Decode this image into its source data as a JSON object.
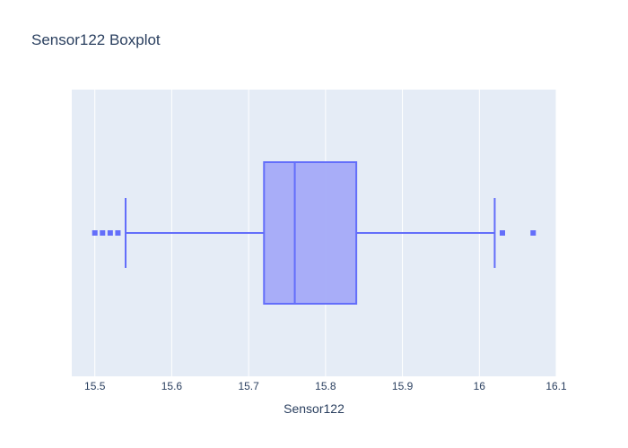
{
  "chart_data": {
    "type": "box",
    "title": "Sensor122 Boxplot",
    "xlabel": "Sensor122",
    "ylabel": "",
    "orientation": "horizontal",
    "xlim": [
      15.47,
      16.1
    ],
    "xticks": [
      15.5,
      15.6,
      15.7,
      15.8,
      15.9,
      16,
      16.1
    ],
    "xtick_labels": [
      "15.5",
      "15.6",
      "15.7",
      "15.8",
      "15.9",
      "16",
      "16.1"
    ],
    "grid": true,
    "series": [
      {
        "lower_whisker": 15.54,
        "q1": 15.72,
        "median": 15.76,
        "q3": 15.84,
        "upper_whisker": 16.02,
        "outliers": [
          15.5,
          15.51,
          15.52,
          15.53,
          16.03,
          16.07
        ]
      }
    ],
    "colors": {
      "plot_bg": "#e5ecf6",
      "grid": "#ffffff",
      "line": "#636efa",
      "fill": "#a4aaf8",
      "text": "#2a3f5f"
    }
  }
}
